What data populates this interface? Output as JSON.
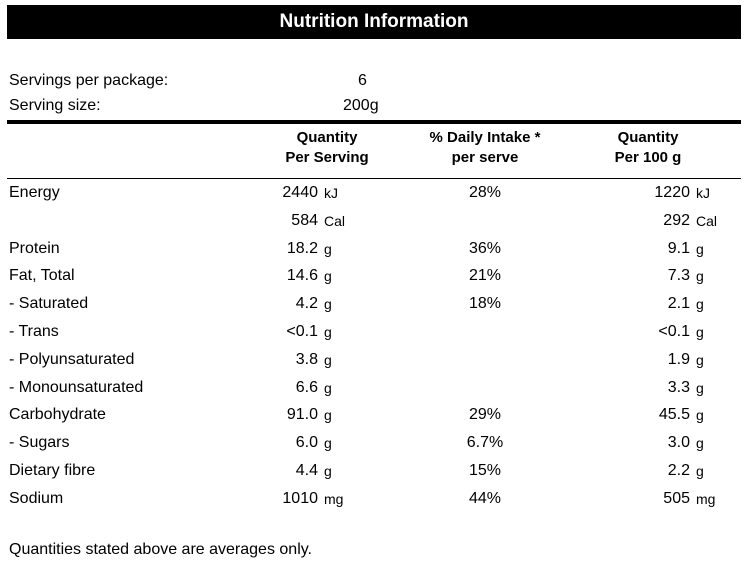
{
  "title": "Nutrition Information",
  "servings": {
    "per_package_label": "Servings per package:",
    "per_package_value": "6",
    "size_label": "Serving size:",
    "size_value": "200g"
  },
  "headers": {
    "qty_serving": [
      "Quantity",
      "Per Serving"
    ],
    "daily_intake": [
      "% Daily Intake *",
      "per serve"
    ],
    "qty_100g": [
      "Quantity",
      "Per 100 g"
    ]
  },
  "rows": [
    {
      "label": "Energy",
      "serving": "2440",
      "serving_unit": "kJ",
      "daily": "28%",
      "per100": "1220",
      "per100_unit": "kJ"
    },
    {
      "label": "",
      "serving": "584",
      "serving_unit": "Cal",
      "daily": "",
      "per100": "292",
      "per100_unit": "Cal"
    },
    {
      "label": "Protein",
      "serving": "18.2",
      "serving_unit": "g",
      "daily": "36%",
      "per100": "9.1",
      "per100_unit": "g"
    },
    {
      "label": "Fat, Total",
      "serving": "14.6",
      "serving_unit": "g",
      "daily": "21%",
      "per100": "7.3",
      "per100_unit": "g"
    },
    {
      "label": "- Saturated",
      "serving": "4.2",
      "serving_unit": "g",
      "daily": "18%",
      "per100": "2.1",
      "per100_unit": "g"
    },
    {
      "label": "- Trans",
      "serving": "<0.1",
      "serving_unit": "g",
      "daily": "",
      "per100": "<0.1",
      "per100_unit": "g"
    },
    {
      "label": "- Polyunsaturated",
      "serving": "3.8",
      "serving_unit": "g",
      "daily": "",
      "per100": "1.9",
      "per100_unit": "g"
    },
    {
      "label": "- Monounsaturated",
      "serving": "6.6",
      "serving_unit": "g",
      "daily": "",
      "per100": "3.3",
      "per100_unit": "g"
    },
    {
      "label": "Carbohydrate",
      "serving": "91.0",
      "serving_unit": "g",
      "daily": "29%",
      "per100": "45.5",
      "per100_unit": "g"
    },
    {
      "label": "- Sugars",
      "serving": "6.0",
      "serving_unit": "g",
      "daily": "6.7%",
      "per100": "3.0",
      "per100_unit": "g"
    },
    {
      "label": "Dietary fibre",
      "serving": "4.4",
      "serving_unit": "g",
      "daily": "15%",
      "per100": "2.2",
      "per100_unit": "g"
    },
    {
      "label": "Sodium",
      "serving": "1010",
      "serving_unit": "mg",
      "daily": "44%",
      "per100": "505",
      "per100_unit": "mg"
    }
  ],
  "footer": "Quantities stated above are averages only."
}
